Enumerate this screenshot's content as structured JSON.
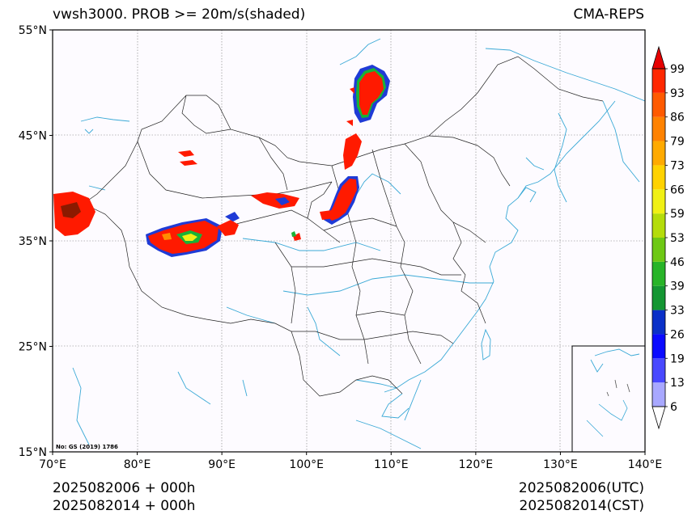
{
  "header": {
    "title": "vwsh3000. PROB >= 20m/s(shaded)",
    "model": "CMA-REPS"
  },
  "map": {
    "lat_labels": [
      "55°N",
      "45°N",
      "35°N",
      "25°N",
      "15°N"
    ],
    "lon_labels": [
      "70°E",
      "80°E",
      "90°E",
      "100°E",
      "110°E",
      "120°E",
      "130°E",
      "140°E"
    ],
    "extent": {
      "lon": [
        70,
        140
      ],
      "lat": [
        15,
        55
      ]
    },
    "gridlines": true,
    "inset": "south-china-sea",
    "credit": "No: GS (2019) 1786",
    "colors": {
      "coastline": "#3aa9d6",
      "border": "#222222",
      "shade_high": "#ff1a00"
    }
  },
  "colorbar": {
    "levels": [
      "6",
      "13",
      "19",
      "26",
      "33",
      "39",
      "46",
      "53",
      "59",
      "66",
      "73",
      "79",
      "86",
      "93",
      "99"
    ],
    "colors": [
      "#ffffff",
      "#a8a8ff",
      "#4848ff",
      "#0a0aff",
      "#0a30c8",
      "#149632",
      "#28b428",
      "#6ec814",
      "#b4dc0a",
      "#f0f014",
      "#ffd200",
      "#ffaa00",
      "#ff8200",
      "#ff5a00",
      "#ff2800",
      "#e60000"
    ]
  },
  "footer": {
    "left_line1": "2025082006  +  000h",
    "left_line2": "2025082014  +  000h",
    "right_line1": "2025082006(UTC)",
    "right_line2": "2025082014(CST)"
  }
}
